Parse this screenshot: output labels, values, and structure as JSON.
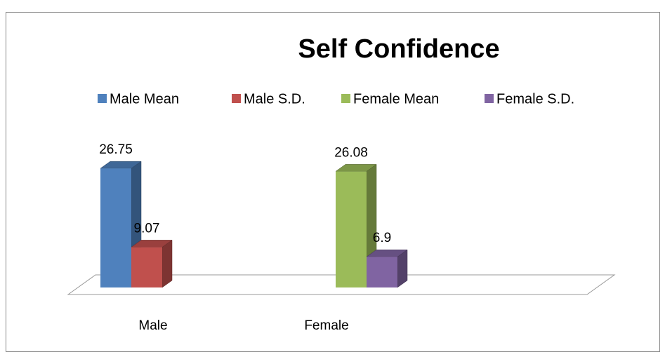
{
  "chart_data": {
    "type": "bar3d",
    "title": "Self Confidence",
    "categories": [
      "Male",
      "Female"
    ],
    "series": [
      {
        "name": "Male Mean",
        "color": "#4f81bd",
        "values": [
          26.75,
          null
        ]
      },
      {
        "name": "Male S.D.",
        "color": "#c0504d",
        "values": [
          9.07,
          null
        ]
      },
      {
        "name": "Female Mean",
        "color": "#9bbb59",
        "values": [
          null,
          26.08
        ]
      },
      {
        "name": "Female S.D.",
        "color": "#8064a2",
        "values": [
          null,
          6.9
        ]
      }
    ],
    "legend": "top"
  }
}
